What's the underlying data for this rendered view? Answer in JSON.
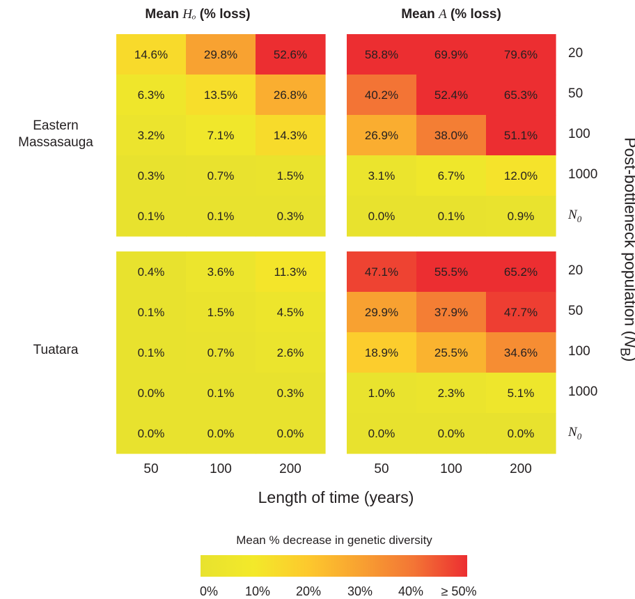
{
  "chart_data": {
    "type": "heatmap",
    "columns": [
      {
        "key": "Ho",
        "title_prefix": "Mean ",
        "title_var": "Hₒ",
        "title_suffix": " (% loss)"
      },
      {
        "key": "A",
        "title_prefix": "Mean ",
        "title_var": "A",
        "title_suffix": " (% loss)"
      }
    ],
    "rows": [
      {
        "name": "Eastern Massasauga",
        "line1": "Eastern",
        "line2": "Massasauga"
      },
      {
        "name": "Tuatara",
        "line1": "Tuatara",
        "line2": ""
      }
    ],
    "x_categories": [
      "50",
      "100",
      "200"
    ],
    "y_categories": [
      "20",
      "50",
      "100",
      "1000",
      "N0"
    ],
    "y_tick_labels": [
      {
        "main": "20",
        "sub": ""
      },
      {
        "main": "50",
        "sub": ""
      },
      {
        "main": "100",
        "sub": ""
      },
      {
        "main": "1000",
        "sub": ""
      },
      {
        "main": "N",
        "sub": "0"
      }
    ],
    "xlabel": "Length of time (years)",
    "ylabel": {
      "main": "Post-bottleneck population (",
      "var": "N",
      "sub": "B",
      "end": ")"
    },
    "panels": [
      {
        "species": "Eastern Massasauga",
        "metric": "Ho",
        "values": [
          [
            14.6,
            29.8,
            52.6
          ],
          [
            6.3,
            13.5,
            26.8
          ],
          [
            3.2,
            7.1,
            14.3
          ],
          [
            0.3,
            0.7,
            1.5
          ],
          [
            0.1,
            0.1,
            0.3
          ]
        ]
      },
      {
        "species": "Eastern Massasauga",
        "metric": "A",
        "values": [
          [
            58.8,
            69.9,
            79.6
          ],
          [
            40.2,
            52.4,
            65.3
          ],
          [
            26.9,
            38.0,
            51.1
          ],
          [
            3.1,
            6.7,
            12.0
          ],
          [
            0.0,
            0.1,
            0.9
          ]
        ]
      },
      {
        "species": "Tuatara",
        "metric": "Ho",
        "values": [
          [
            0.4,
            3.6,
            11.3
          ],
          [
            0.1,
            1.5,
            4.5
          ],
          [
            0.1,
            0.7,
            2.6
          ],
          [
            0.0,
            0.1,
            0.3
          ],
          [
            0.0,
            0.0,
            0.0
          ]
        ]
      },
      {
        "species": "Tuatara",
        "metric": "A",
        "values": [
          [
            47.1,
            55.5,
            65.2
          ],
          [
            29.9,
            37.9,
            47.7
          ],
          [
            18.9,
            25.5,
            34.6
          ],
          [
            1.0,
            2.3,
            5.1
          ],
          [
            0.0,
            0.0,
            0.0
          ]
        ]
      }
    ],
    "colorbar": {
      "title": "Mean % decrease in genetic diversity",
      "ticks": [
        "0%",
        "10%",
        "20%",
        "30%",
        "40%",
        "≥ 50%"
      ],
      "range": [
        0,
        50
      ],
      "colors": [
        "#e8e22e",
        "#f3e92a",
        "#fdc92d",
        "#f8a131",
        "#f37535",
        "#ec2e31"
      ]
    }
  }
}
